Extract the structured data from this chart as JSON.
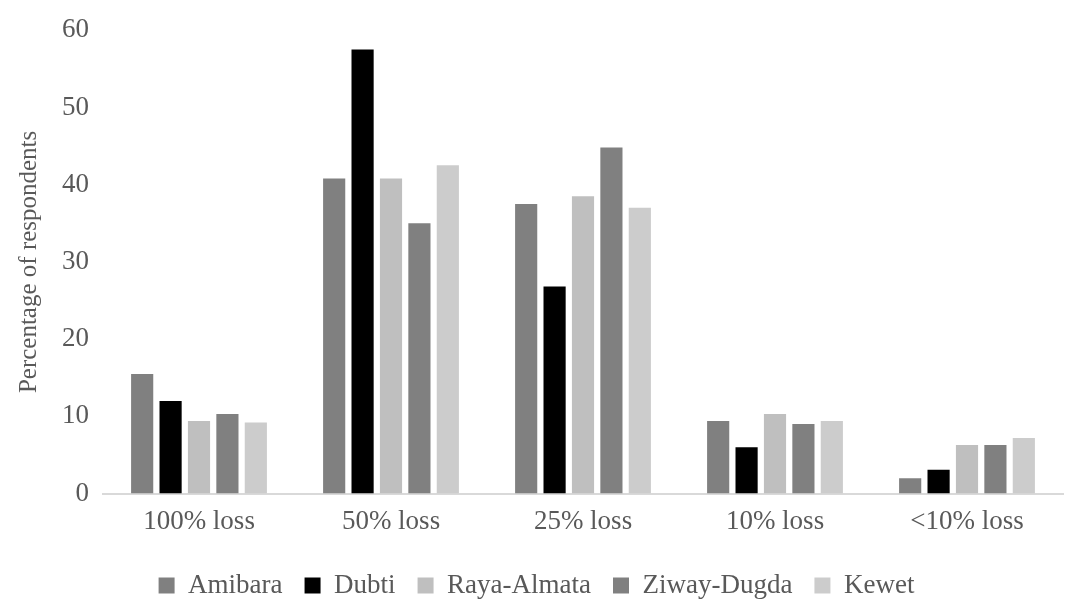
{
  "chart_data": {
    "type": "bar",
    "ylabel": "Percentage of respondents",
    "categories": [
      "100% loss",
      "50% loss",
      "25% loss",
      "10% loss",
      "<10% loss"
    ],
    "series": [
      {
        "name": "Amibara",
        "color": "#808080",
        "values": [
          15.5,
          40.8,
          37.5,
          9.4,
          2
        ]
      },
      {
        "name": "Dubti",
        "color": "#000000",
        "values": [
          12,
          57.5,
          26.8,
          6,
          3.1
        ]
      },
      {
        "name": "Raya-Almata",
        "color": "#bfbfbf",
        "values": [
          9.4,
          40.8,
          38.5,
          10.3,
          6.3
        ]
      },
      {
        "name": "Ziway-Dugda",
        "color": "#808080",
        "values": [
          10.3,
          35,
          44.8,
          9,
          6.3
        ]
      },
      {
        "name": "Kewet",
        "color": "#cccccc",
        "values": [
          9.2,
          42.5,
          37,
          9.4,
          7.2
        ]
      }
    ],
    "ylim": [
      0,
      60
    ],
    "yticks": [
      0,
      10,
      20,
      30,
      40,
      50,
      60
    ],
    "grid": false,
    "legend": "bottom"
  }
}
